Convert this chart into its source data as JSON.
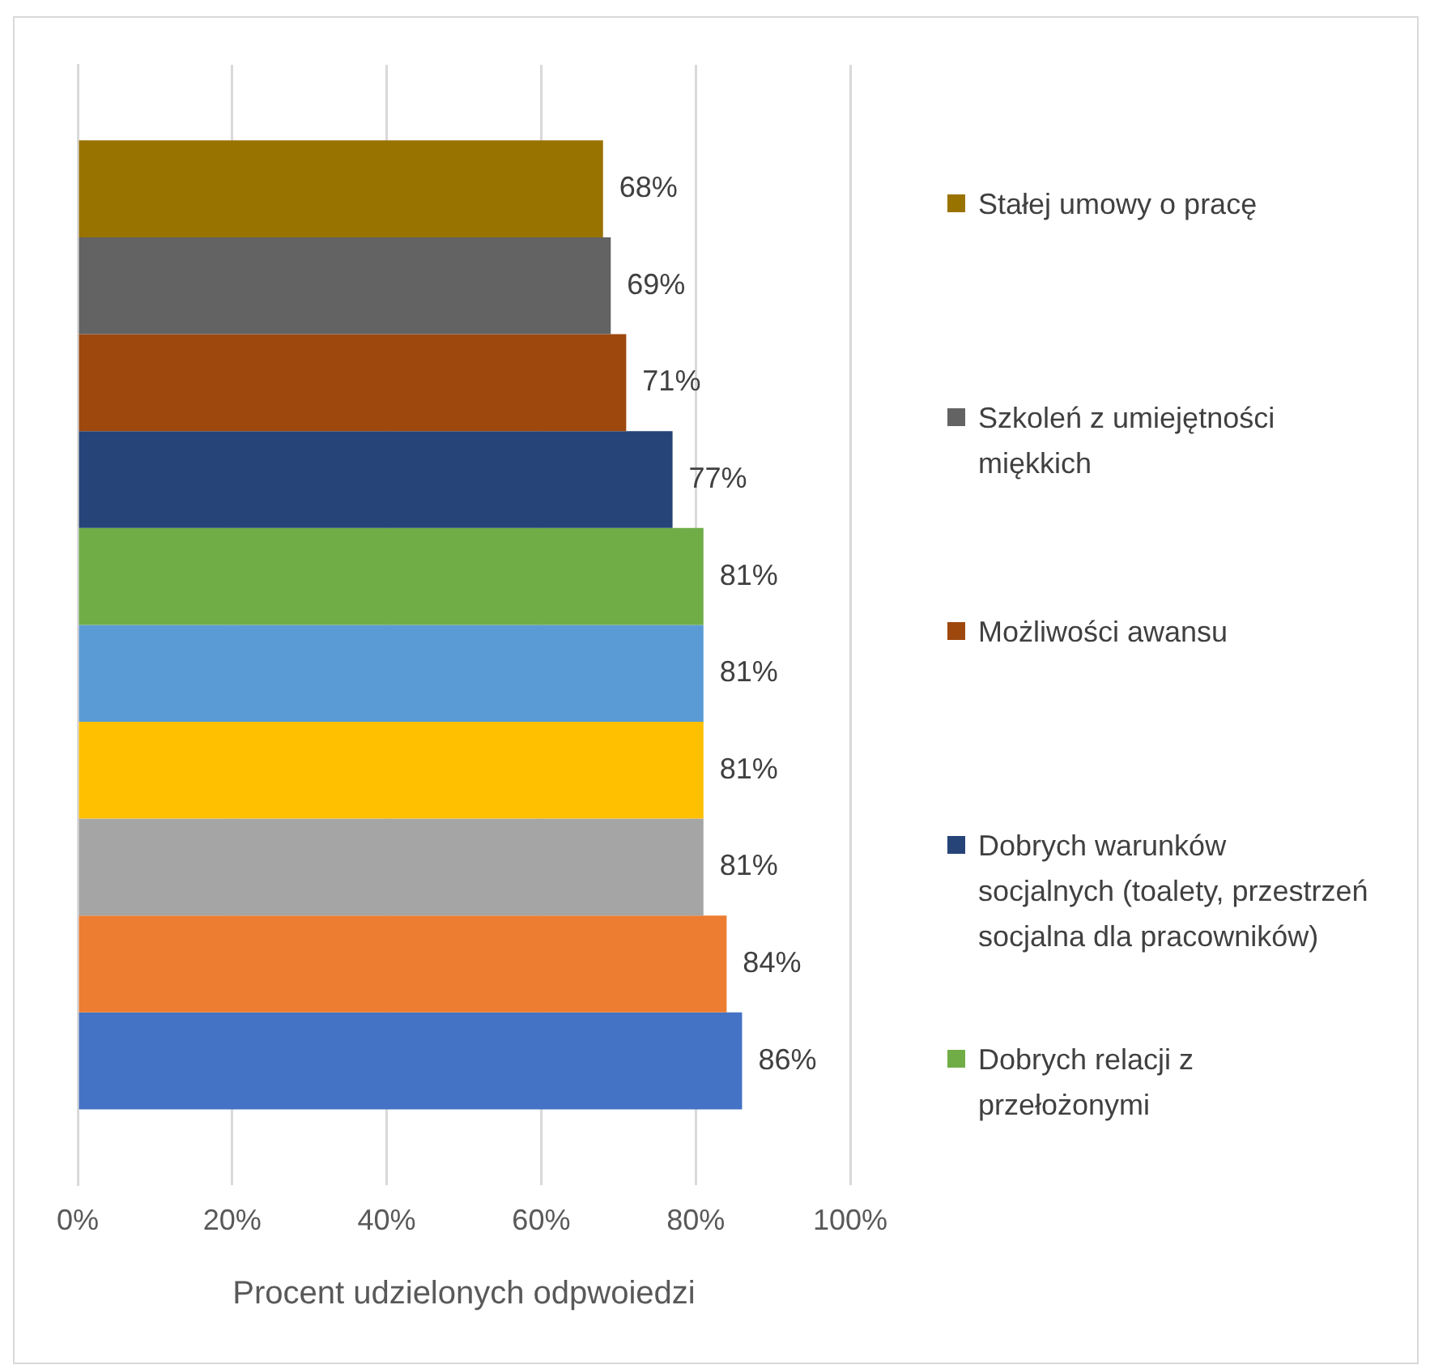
{
  "chart_data": {
    "type": "bar",
    "orientation": "horizontal",
    "xlabel": "Procent udzielonych odpwoiedzi",
    "categories": [
      null
    ],
    "xlim": [
      0,
      100
    ],
    "xticks": [
      {
        "value": 0,
        "label": "0%"
      },
      {
        "value": 20,
        "label": "20%"
      },
      {
        "value": 40,
        "label": "40%"
      },
      {
        "value": 60,
        "label": "60%"
      },
      {
        "value": 80,
        "label": "80%"
      },
      {
        "value": 100,
        "label": "100%"
      }
    ],
    "grid": "x",
    "legend": "right",
    "tick_labels": "x",
    "series": [
      {
        "name": "Stałej umowy o pracę",
        "color": "#997300",
        "values": [
          68
        ],
        "value_labels": [
          "68%"
        ]
      },
      {
        "name": "Szkoleń z umiejętności miękkich",
        "color": "#636363",
        "values": [
          69
        ],
        "value_labels": [
          "69%"
        ]
      },
      {
        "name": "Możliwości awansu",
        "color": "#9e480e",
        "values": [
          71
        ],
        "value_labels": [
          "71%"
        ]
      },
      {
        "name": "Dobrych warunków socjalnych (toalety, przestrzeń socjalna dla pracowników)",
        "color": "#264478",
        "values": [
          77
        ],
        "value_labels": [
          "77%"
        ]
      },
      {
        "name": "Dobrych relacji z przełożonymi",
        "color": "#70ad47",
        "values": [
          81
        ],
        "value_labels": [
          "81%"
        ]
      },
      {
        "color": "#5b9bd5",
        "values": [
          81
        ],
        "value_labels": [
          "81%"
        ]
      },
      {
        "color": "#ffc000",
        "values": [
          81
        ],
        "value_labels": [
          "81%"
        ]
      },
      {
        "color": "#a5a5a5",
        "values": [
          81
        ],
        "value_labels": [
          "81%"
        ]
      },
      {
        "color": "#ed7d31",
        "values": [
          84
        ],
        "value_labels": [
          "84%"
        ]
      },
      {
        "color": "#4472c4",
        "values": [
          86
        ],
        "value_labels": [
          "86%"
        ]
      }
    ]
  }
}
